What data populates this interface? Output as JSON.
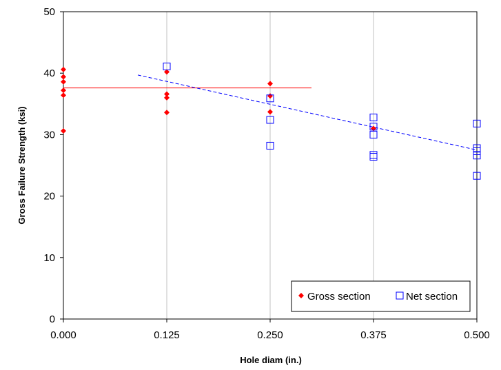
{
  "chart_data": {
    "type": "scatter",
    "xlabel": "Hole diam (in.)",
    "ylabel": "Gross Failure Strength (ksi)",
    "xlim": [
      0,
      0.5
    ],
    "ylim": [
      0,
      50
    ],
    "x_ticks": [
      "0.000",
      "0.125",
      "0.250",
      "0.375",
      "0.500"
    ],
    "x_tick_values": [
      0,
      0.125,
      0.25,
      0.375,
      0.5
    ],
    "y_ticks": [
      "0",
      "10",
      "20",
      "30",
      "40",
      "50"
    ],
    "y_tick_values": [
      0,
      10,
      20,
      30,
      40,
      50
    ],
    "grid": "vertical",
    "legend_position": "bottom-right",
    "series": [
      {
        "name": "Gross section",
        "marker": "diamond",
        "color": "#ff0000",
        "points": [
          [
            0,
            40.6
          ],
          [
            0,
            39.4
          ],
          [
            0,
            38.6
          ],
          [
            0,
            37.2
          ],
          [
            0,
            36.4
          ],
          [
            0,
            30.6
          ],
          [
            0.125,
            40.2
          ],
          [
            0.125,
            36.6
          ],
          [
            0.125,
            36.0
          ],
          [
            0.125,
            33.6
          ],
          [
            0.25,
            38.3
          ],
          [
            0.25,
            36.3
          ],
          [
            0.25,
            33.7
          ],
          [
            0.375,
            31.0
          ]
        ]
      },
      {
        "name": "Net section",
        "marker": "square-open",
        "color": "#0000ff",
        "points": [
          [
            0.125,
            41.1
          ],
          [
            0.25,
            35.9
          ],
          [
            0.25,
            32.4
          ],
          [
            0.25,
            28.2
          ],
          [
            0.375,
            32.8
          ],
          [
            0.375,
            31.3
          ],
          [
            0.375,
            30.0
          ],
          [
            0.375,
            26.7
          ],
          [
            0.375,
            26.4
          ],
          [
            0.5,
            31.8
          ],
          [
            0.5,
            27.8
          ],
          [
            0.5,
            27.3
          ],
          [
            0.5,
            26.6
          ],
          [
            0.5,
            23.3
          ]
        ]
      }
    ],
    "trend_lines": [
      {
        "series": "Gross section",
        "style": "solid",
        "color": "#ff0000",
        "x": [
          0,
          0.3
        ],
        "y": [
          37.6,
          37.6
        ]
      },
      {
        "series": "Net section",
        "style": "dashed",
        "color": "#0000ff",
        "x": [
          0.09,
          0.5
        ],
        "y": [
          39.7,
          27.5
        ]
      }
    ]
  }
}
